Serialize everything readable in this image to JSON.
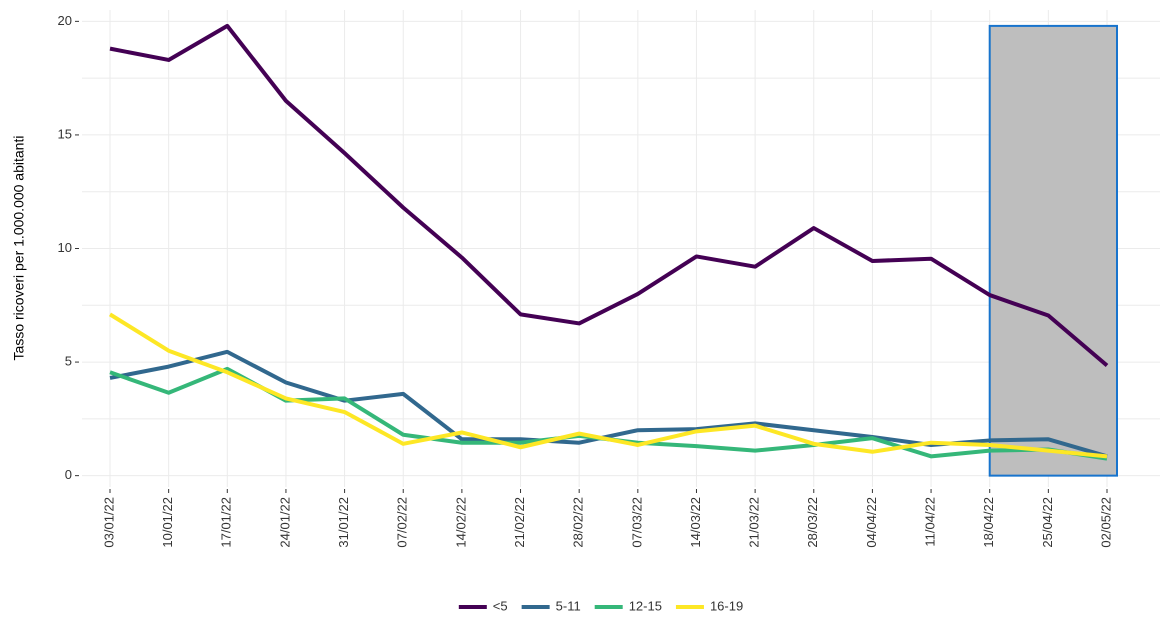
{
  "chart_data": {
    "type": "line",
    "y_label": "Tasso ricoveri per 1.000.000 abitanti",
    "categories": [
      "03/01/22",
      "10/01/22",
      "17/01/22",
      "24/01/22",
      "31/01/22",
      "07/02/22",
      "14/02/22",
      "21/02/22",
      "28/02/22",
      "07/03/22",
      "14/03/22",
      "21/03/22",
      "28/03/22",
      "04/04/22",
      "11/04/22",
      "18/04/22",
      "25/04/22",
      "02/05/22"
    ],
    "series": [
      {
        "name": "<5",
        "color": "#440154",
        "values": [
          18.8,
          18.3,
          19.8,
          16.5,
          14.2,
          11.8,
          9.6,
          7.1,
          6.7,
          8.0,
          9.65,
          9.2,
          10.9,
          9.45,
          9.55,
          7.95,
          7.05,
          4.85
        ]
      },
      {
        "name": "5-11",
        "color": "#31688e",
        "values": [
          4.3,
          4.8,
          5.45,
          4.1,
          3.3,
          3.6,
          1.6,
          1.6,
          1.45,
          2.0,
          2.05,
          2.3,
          2.0,
          1.7,
          1.35,
          1.55,
          1.6,
          0.85
        ]
      },
      {
        "name": "12-15",
        "color": "#35b779",
        "values": [
          4.55,
          3.65,
          4.7,
          3.3,
          3.4,
          1.8,
          1.45,
          1.45,
          1.75,
          1.45,
          1.3,
          1.1,
          1.35,
          1.65,
          0.85,
          1.1,
          1.15,
          0.75
        ]
      },
      {
        "name": "16-19",
        "color": "#fde725",
        "values": [
          7.1,
          5.5,
          4.55,
          3.4,
          2.8,
          1.4,
          1.9,
          1.25,
          1.85,
          1.35,
          1.95,
          2.2,
          1.4,
          1.05,
          1.45,
          1.35,
          1.1,
          0.85
        ]
      }
    ],
    "ylim": [
      -0.5,
      20.5
    ],
    "yticks": [
      0,
      5,
      10,
      15,
      20
    ],
    "grid": true,
    "legend": "bottom",
    "highlight": {
      "from": "18/04/22",
      "to": "02/05/22",
      "ylim": [
        0,
        19.8
      ],
      "fill": "#bebebe",
      "stroke": "#1874cd"
    }
  }
}
